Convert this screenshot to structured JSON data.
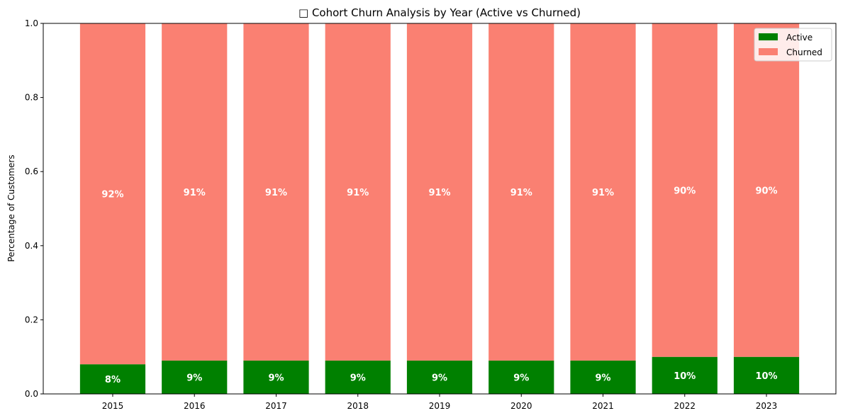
{
  "chart_data": {
    "type": "bar",
    "stacked": true,
    "title": "□ Cohort Churn Analysis by Year (Active vs Churned)",
    "xlabel": "",
    "ylabel": "Percentage of Customers",
    "ylim": [
      0,
      1
    ],
    "yticks": [
      "0.0",
      "0.2",
      "0.4",
      "0.6",
      "0.8",
      "1.0"
    ],
    "ytick_values": [
      0,
      0.2,
      0.4,
      0.6,
      0.8,
      1.0
    ],
    "categories": [
      "2015",
      "2016",
      "2017",
      "2018",
      "2019",
      "2020",
      "2021",
      "2022",
      "2023"
    ],
    "series": [
      {
        "name": "Active",
        "color": "#008000",
        "values": [
          0.08,
          0.09,
          0.09,
          0.09,
          0.09,
          0.09,
          0.09,
          0.1,
          0.1
        ],
        "labels": [
          "8%",
          "9%",
          "9%",
          "9%",
          "9%",
          "9%",
          "9%",
          "10%",
          "10%"
        ]
      },
      {
        "name": "Churned",
        "color": "#fa8072",
        "values": [
          0.92,
          0.91,
          0.91,
          0.91,
          0.91,
          0.91,
          0.91,
          0.9,
          0.9
        ],
        "labels": [
          "92%",
          "91%",
          "91%",
          "91%",
          "91%",
          "91%",
          "91%",
          "90%",
          "90%"
        ]
      }
    ],
    "grid": false,
    "legend_position": "top-right"
  }
}
